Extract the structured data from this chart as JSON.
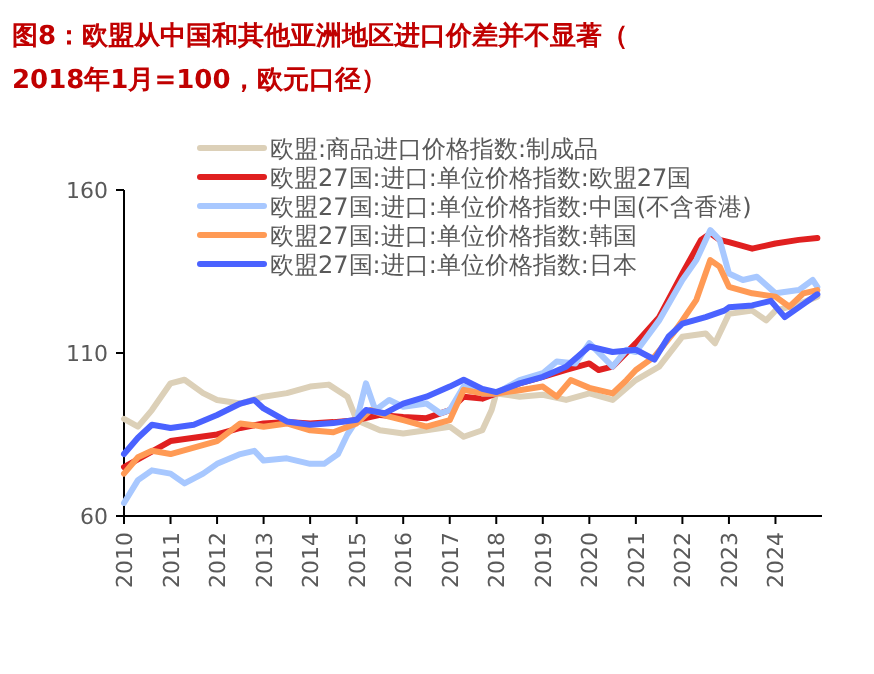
{
  "chart_data": {
    "type": "line",
    "title": "图8：欧盟从中国和其他亚洲地区进口价差并不显著（2018年1月=100，欧元口径）",
    "xlim": [
      2010,
      2025
    ],
    "xticks": [
      2010,
      2011,
      2012,
      2013,
      2014,
      2015,
      2016,
      2017,
      2018,
      2019,
      2020,
      2021,
      2022,
      2023,
      2024
    ],
    "ylim": [
      60,
      160
    ],
    "yticks": [
      60,
      110,
      160
    ],
    "grid": false,
    "legend": "top",
    "marker": "none",
    "line_style": "solid",
    "series": [
      {
        "name": "欧盟:商品进口价格指数:制成品",
        "color": "#dcd0b8",
        "x": [
          2010,
          2010.3,
          2010.6,
          2011,
          2011.3,
          2011.7,
          2012,
          2012.5,
          2013,
          2013.5,
          2014,
          2014.4,
          2014.8,
          2015,
          2015.5,
          2016,
          2016.5,
          2017,
          2017.3,
          2017.7,
          2017.9,
          2018,
          2018.5,
          2019,
          2019.5,
          2020,
          2020.5,
          2021,
          2021.5,
          2022,
          2022.5,
          2022.7,
          2023,
          2023.5,
          2023.8,
          2024,
          2024.5,
          2024.9
        ],
        "values": [
          89.8,
          87.4,
          92.5,
          100.7,
          101.8,
          97.7,
          95.6,
          94.5,
          96.6,
          97.7,
          99.7,
          100.3,
          96.6,
          89.4,
          86.3,
          85.3,
          86.3,
          87.4,
          84.3,
          86.3,
          92.5,
          97.6,
          96.6,
          97.2,
          95.6,
          97.6,
          95.6,
          101.7,
          105.8,
          115,
          116,
          113,
          122,
          123,
          120,
          123,
          125,
          127.3
        ]
      },
      {
        "name": "欧盟27国:进口:单位价格指数:欧盟27国",
        "color": "#e02020",
        "x": [
          2010,
          2010.5,
          2011,
          2011.5,
          2012,
          2012.5,
          2013,
          2013.5,
          2014,
          2014.5,
          2015,
          2015.5,
          2016,
          2016.5,
          2017,
          2017.3,
          2017.7,
          2018,
          2018.5,
          2019,
          2019.5,
          2020,
          2020.2,
          2020.5,
          2021,
          2021.5,
          2022,
          2022.4,
          2022.6,
          2022.8,
          2023,
          2023.5,
          2024,
          2024.5,
          2024.9
        ],
        "values": [
          75,
          79,
          83,
          84,
          85,
          87,
          88.4,
          88.8,
          88.4,
          88.8,
          89.4,
          91,
          90.4,
          90,
          92.5,
          96.6,
          96,
          97.6,
          100.7,
          102.7,
          104.8,
          106.8,
          104.8,
          105.8,
          113,
          121,
          134.4,
          144.7,
          146.7,
          144.7,
          144,
          142,
          143.6,
          144.7,
          145.3
        ]
      },
      {
        "name": "欧盟27国:进口:单位价格指数:中国(不含香港)",
        "color": "#a8c8ff",
        "x": [
          2010,
          2010.3,
          2010.6,
          2011,
          2011.3,
          2011.7,
          2012,
          2012.5,
          2012.8,
          2013,
          2013.5,
          2014,
          2014.3,
          2014.6,
          2014.8,
          2015,
          2015.2,
          2015.4,
          2015.7,
          2016,
          2016.5,
          2016.8,
          2017,
          2017.3,
          2017.7,
          2018,
          2018.5,
          2019,
          2019.3,
          2019.7,
          2020,
          2020.5,
          2020.8,
          2021,
          2021.5,
          2022,
          2022.3,
          2022.6,
          2022.8,
          2023,
          2023.3,
          2023.6,
          2024,
          2024.5,
          2024.8,
          2024.9
        ],
        "values": [
          64,
          71,
          74,
          73,
          70,
          73,
          76,
          79,
          80,
          77,
          77.7,
          76,
          76,
          79,
          85,
          89.4,
          100.7,
          92.5,
          95.6,
          93.5,
          94.5,
          91.5,
          92.5,
          99.7,
          97.6,
          97.6,
          101.7,
          103.8,
          107.4,
          106.8,
          113,
          105.8,
          111,
          110.3,
          120,
          132.4,
          138.5,
          147.7,
          144.7,
          134.4,
          132.4,
          133.4,
          128.3,
          129.3,
          132.4,
          130.3
        ]
      },
      {
        "name": "欧盟27国:进口:单位价格指数:韩国",
        "color": "#ff9a55",
        "x": [
          2010,
          2010.3,
          2010.6,
          2011,
          2011.5,
          2012,
          2012.5,
          2013,
          2013.5,
          2014,
          2014.5,
          2015,
          2015.3,
          2015.7,
          2016,
          2016.5,
          2017,
          2017.3,
          2017.7,
          2018,
          2018.5,
          2019,
          2019.3,
          2019.6,
          2020,
          2020.5,
          2020.8,
          2021,
          2021.4,
          2021.8,
          2022,
          2022.3,
          2022.6,
          2022.8,
          2023,
          2023.5,
          2024,
          2024.3,
          2024.6,
          2024.9
        ],
        "values": [
          73,
          78,
          80,
          79,
          81,
          83,
          88.4,
          87.4,
          88.4,
          86.3,
          85.7,
          88.4,
          92.5,
          90.5,
          89.4,
          87.4,
          89.4,
          98.7,
          97.6,
          97.6,
          98.6,
          99.7,
          96.6,
          101.7,
          99.3,
          97.6,
          101.7,
          104.8,
          108.9,
          116,
          120,
          126.3,
          138.5,
          136.5,
          130.3,
          128.3,
          127.3,
          124.2,
          128.3,
          129.3
        ]
      },
      {
        "name": "欧盟27国:进口:单位价格指数:日本",
        "color": "#4a62ff",
        "x": [
          2010,
          2010.3,
          2010.6,
          2011,
          2011.5,
          2012,
          2012.5,
          2012.8,
          2013,
          2013.5,
          2014,
          2014.5,
          2015,
          2015.2,
          2015.6,
          2016,
          2016.5,
          2017,
          2017.3,
          2017.7,
          2018,
          2018.5,
          2019,
          2019.5,
          2020,
          2020.5,
          2021,
          2021.4,
          2021.7,
          2022,
          2022.5,
          2022.9,
          2023,
          2023.5,
          2023.9,
          2024.2,
          2024.5,
          2024.9
        ],
        "values": [
          79,
          84,
          88,
          87,
          88,
          91,
          94.5,
          95.6,
          93,
          89,
          88,
          88.5,
          89.5,
          92.5,
          91.5,
          94.5,
          96.6,
          99.7,
          101.8,
          99,
          98,
          100.7,
          102.7,
          105.8,
          112,
          110.3,
          111,
          108,
          115,
          119,
          121,
          123,
          124,
          124.6,
          126,
          121,
          124,
          128
        ]
      }
    ]
  }
}
